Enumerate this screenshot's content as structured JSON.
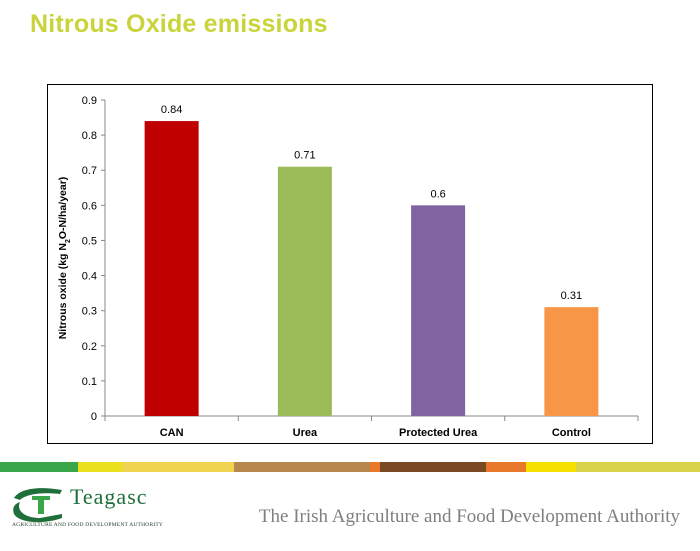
{
  "slide": {
    "title": "Nitrous Oxide emissions",
    "footer": "The Irish Agriculture and Food Development Authority"
  },
  "logo": {
    "name": "Teagasc",
    "subtitle": "Agriculture and Food Development Authority",
    "color": "#1f6f3a"
  },
  "colors": {
    "title": "#c9d43a",
    "footer_text": "#7f7f7f"
  },
  "stripe_colors": [
    "#3aa64a",
    "#e9e11e",
    "#f0d34f",
    "#b8874d",
    "#e9792a",
    "#7a4a22",
    "#e9792a",
    "#f5e000",
    "#d8d34a"
  ],
  "chart_data": {
    "type": "bar",
    "categories": [
      "CAN",
      "Urea",
      "Protected Urea",
      "Control"
    ],
    "values": [
      0.84,
      0.71,
      0.6,
      0.31
    ],
    "value_labels": [
      "0.84",
      "0.71",
      "0.6",
      "0.31"
    ],
    "colors": [
      "#c00000",
      "#9bbb59",
      "#8064a2",
      "#f79646"
    ],
    "title": "",
    "xlabel": "",
    "ylabel": "Nitrous oxide (kg N2O-N/ha/year)",
    "ylim": [
      0,
      0.9
    ],
    "yticks": [
      0,
      0.1,
      0.2,
      0.3,
      0.4,
      0.5,
      0.6,
      0.7,
      0.8,
      0.9
    ],
    "ytick_labels": [
      "0",
      "0.1",
      "0.2",
      "0.3",
      "0.4",
      "0.5",
      "0.6",
      "0.7",
      "0.8",
      "0.9"
    ],
    "grid": false,
    "legend": "none"
  }
}
